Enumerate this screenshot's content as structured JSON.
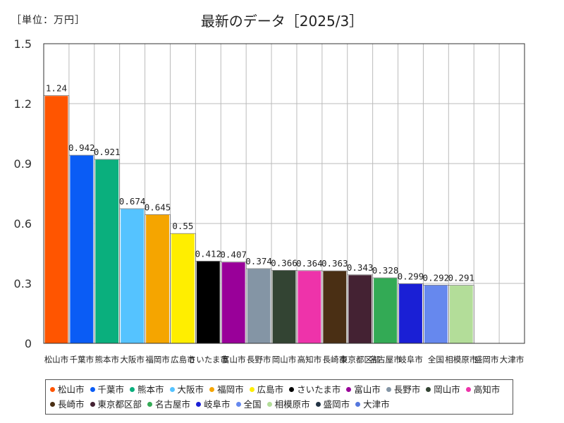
{
  "unit_label": "［単位：万円］",
  "chart_data": {
    "type": "bar",
    "title": "最新のデータ［2025/3］",
    "unit": "［単位：万円］",
    "ylim": [
      0,
      1.5
    ],
    "yticks": [
      "0",
      "0.3",
      "0.6",
      "0.9",
      "1.2",
      "1.5"
    ],
    "ytick_values": [
      0,
      0.3,
      0.6,
      0.9,
      1.2,
      1.5
    ],
    "categories": [
      "松山市",
      "千葉市",
      "熊本市",
      "大阪市",
      "福岡市",
      "広島市",
      "さいたま市",
      "富山市",
      "長野市",
      "岡山市",
      "高知市",
      "長崎市",
      "東京都区部",
      "名古屋市",
      "岐阜市",
      "全国",
      "相模原市",
      "盛岡市",
      "大津市"
    ],
    "values": [
      1.24,
      0.942,
      0.921,
      0.674,
      0.645,
      0.55,
      0.412,
      0.407,
      0.374,
      0.366,
      0.364,
      0.363,
      0.343,
      0.328,
      0.299,
      0.292,
      0.291,
      null,
      null
    ],
    "value_labels": [
      "1.24",
      "0.942",
      "0.921",
      "0.674",
      "0.645",
      "0.55",
      "0.412",
      "0.407",
      "0.374",
      "0.366",
      "0.364",
      "0.363",
      "0.343",
      "0.328",
      "0.299",
      "0.292",
      "0.291",
      "",
      ""
    ],
    "colors": [
      "#ff5500",
      "#0a5cf5",
      "#0aaf7d",
      "#55c3ff",
      "#f5a500",
      "#ffee00",
      "#000000",
      "#990099",
      "#8495a5",
      "#334433",
      "#ee33aa",
      "#4a2f14",
      "#442233",
      "#33aa55",
      "#1a1fd5",
      "#6688ee",
      "#b3dd99",
      "#223344",
      "#5577dd"
    ],
    "legend": [
      "松山市",
      "千葉市",
      "熊本市",
      "大阪市",
      "福岡市",
      "広島市",
      "さいたま市",
      "富山市",
      "長野市",
      "岡山市",
      "高知市",
      "長崎市",
      "東京都区部",
      "名古屋市",
      "岐阜市",
      "全国",
      "相模原市",
      "盛岡市",
      "大津市"
    ],
    "legend_position": "bottom",
    "grid": true
  }
}
